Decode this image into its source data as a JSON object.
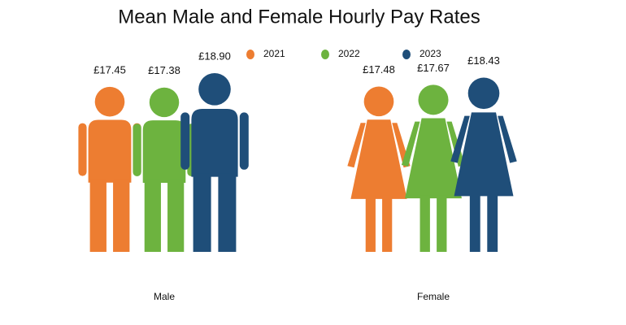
{
  "chart_data": {
    "type": "pictogram-bar",
    "title": "Mean Male and Female Hourly Pay Rates",
    "categories": [
      "Male",
      "Female"
    ],
    "series": [
      {
        "name": "2021",
        "color": "#ed7d31",
        "values": [
          17.45,
          17.48
        ],
        "value_labels": [
          "£17.45",
          "£17.48"
        ]
      },
      {
        "name": "2022",
        "color": "#6db33f",
        "values": [
          17.38,
          17.67
        ],
        "value_labels": [
          "£17.38",
          "£17.67"
        ]
      },
      {
        "name": "2023",
        "color": "#1f4e79",
        "values": [
          18.9,
          18.43
        ],
        "value_labels": [
          "£18.90",
          "£18.43"
        ]
      }
    ],
    "legend": "top"
  }
}
